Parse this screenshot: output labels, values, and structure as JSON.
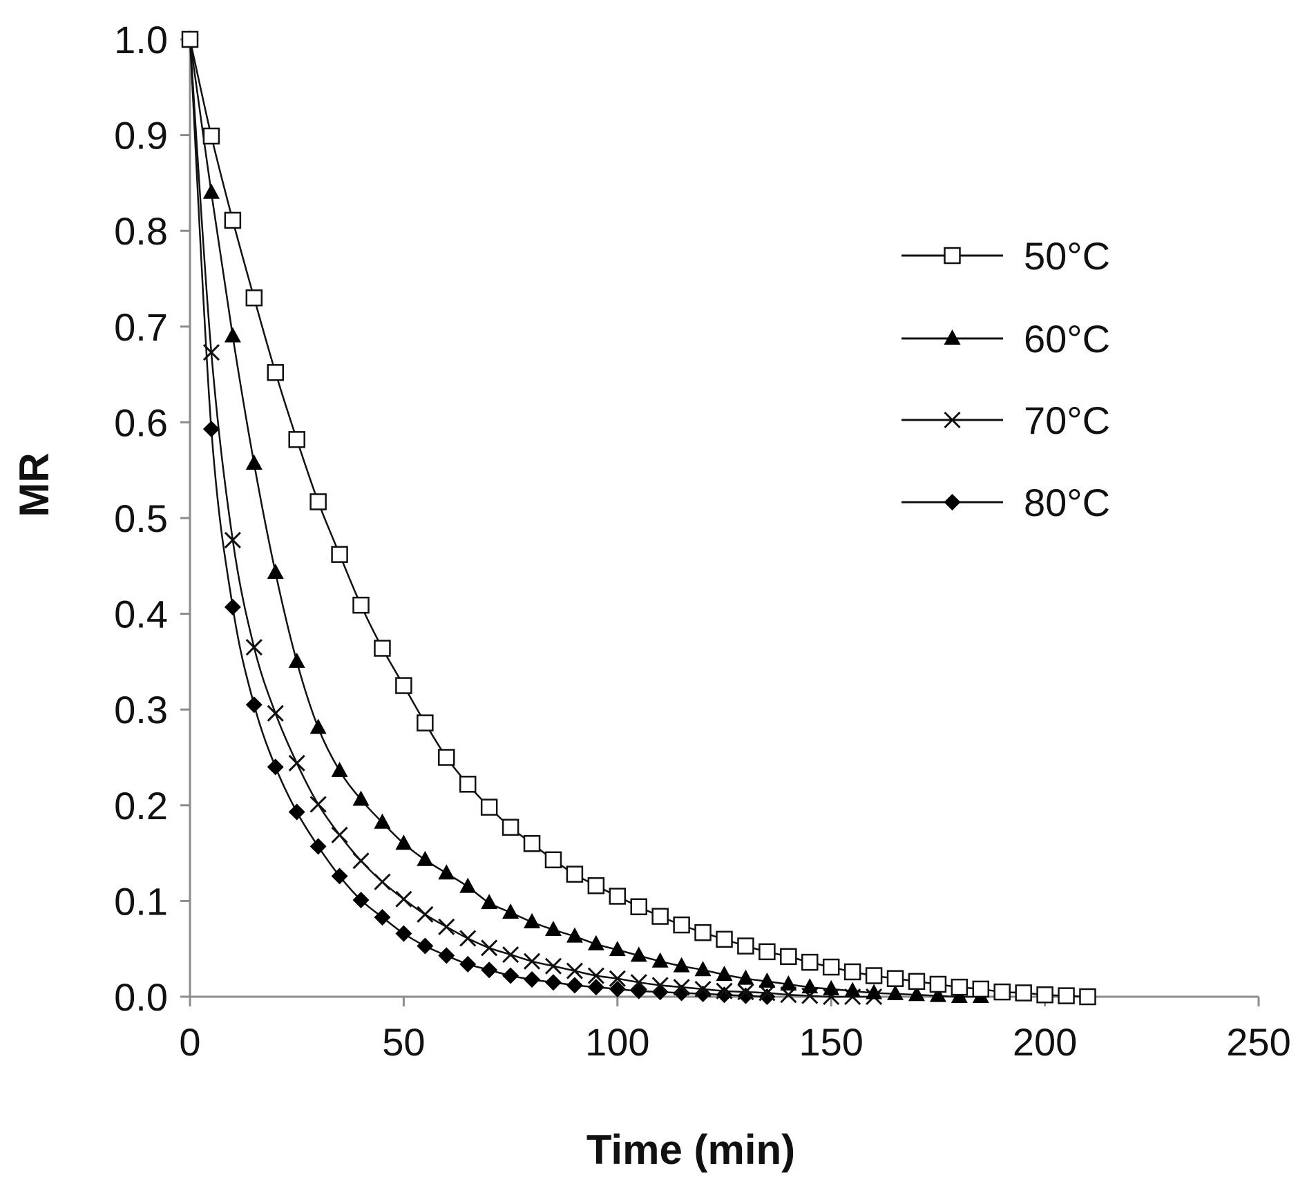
{
  "chart_data": {
    "type": "line",
    "title": "",
    "xlabel": "Time (min)",
    "ylabel": "MR",
    "xlim": [
      0,
      250
    ],
    "ylim": [
      0,
      1.0
    ],
    "xticks": [
      "0",
      "50",
      "100",
      "150",
      "200",
      "250"
    ],
    "yticks": [
      "0.0",
      "0.1",
      "0.2",
      "0.3",
      "0.4",
      "0.5",
      "0.6",
      "0.7",
      "0.8",
      "0.9",
      "1.0"
    ],
    "grid": false,
    "legend_position": "top-right",
    "series": [
      {
        "name": "50°C",
        "marker": "square-open",
        "x": [
          0,
          5,
          10,
          15,
          20,
          25,
          30,
          35,
          40,
          45,
          50,
          55,
          60,
          65,
          70,
          75,
          80,
          85,
          90,
          95,
          100,
          105,
          110,
          115,
          120,
          125,
          130,
          135,
          140,
          145,
          150,
          155,
          160,
          165,
          170,
          175,
          180,
          185,
          190,
          195,
          200,
          205,
          210
        ],
        "y": [
          1.0,
          0.899,
          0.811,
          0.73,
          0.652,
          0.582,
          0.517,
          0.462,
          0.409,
          0.364,
          0.325,
          0.286,
          0.25,
          0.222,
          0.198,
          0.177,
          0.16,
          0.143,
          0.128,
          0.116,
          0.105,
          0.094,
          0.084,
          0.075,
          0.067,
          0.06,
          0.053,
          0.047,
          0.042,
          0.036,
          0.031,
          0.026,
          0.022,
          0.019,
          0.016,
          0.013,
          0.01,
          0.008,
          0.005,
          0.004,
          0.002,
          0.001,
          0.0
        ]
      },
      {
        "name": "60°C",
        "marker": "triangle-filled",
        "x": [
          0,
          5,
          10,
          15,
          20,
          25,
          30,
          35,
          40,
          45,
          50,
          55,
          60,
          65,
          70,
          75,
          80,
          85,
          90,
          95,
          100,
          105,
          110,
          115,
          120,
          125,
          130,
          135,
          140,
          145,
          150,
          155,
          160,
          165,
          170,
          175,
          180,
          185
        ],
        "y": [
          1.0,
          0.84,
          0.69,
          0.557,
          0.443,
          0.35,
          0.281,
          0.236,
          0.206,
          0.182,
          0.16,
          0.143,
          0.129,
          0.115,
          0.098,
          0.088,
          0.078,
          0.07,
          0.063,
          0.055,
          0.049,
          0.043,
          0.037,
          0.032,
          0.028,
          0.023,
          0.019,
          0.016,
          0.013,
          0.01,
          0.008,
          0.006,
          0.004,
          0.003,
          0.002,
          0.001,
          0.0,
          0.0
        ]
      },
      {
        "name": "70°C",
        "marker": "cross",
        "x": [
          0,
          5,
          10,
          15,
          20,
          25,
          30,
          35,
          40,
          45,
          50,
          55,
          60,
          65,
          70,
          75,
          80,
          85,
          90,
          95,
          100,
          105,
          110,
          115,
          120,
          125,
          130,
          135,
          140,
          145,
          150,
          155,
          160
        ],
        "y": [
          1.0,
          0.673,
          0.477,
          0.365,
          0.296,
          0.244,
          0.201,
          0.169,
          0.142,
          0.12,
          0.102,
          0.086,
          0.073,
          0.061,
          0.051,
          0.044,
          0.037,
          0.032,
          0.027,
          0.022,
          0.019,
          0.015,
          0.012,
          0.01,
          0.008,
          0.006,
          0.005,
          0.004,
          0.002,
          0.001,
          0.0,
          0.0,
          0.0
        ]
      },
      {
        "name": "80°C",
        "marker": "diamond-filled",
        "x": [
          0,
          5,
          10,
          15,
          20,
          25,
          30,
          35,
          40,
          45,
          50,
          55,
          60,
          65,
          70,
          75,
          80,
          85,
          90,
          95,
          100,
          105,
          110,
          115,
          120,
          125,
          130,
          135
        ],
        "y": [
          1.0,
          0.593,
          0.407,
          0.305,
          0.24,
          0.193,
          0.157,
          0.126,
          0.101,
          0.083,
          0.066,
          0.053,
          0.043,
          0.034,
          0.028,
          0.022,
          0.018,
          0.015,
          0.012,
          0.01,
          0.008,
          0.006,
          0.005,
          0.004,
          0.003,
          0.002,
          0.001,
          0.0
        ]
      }
    ]
  }
}
